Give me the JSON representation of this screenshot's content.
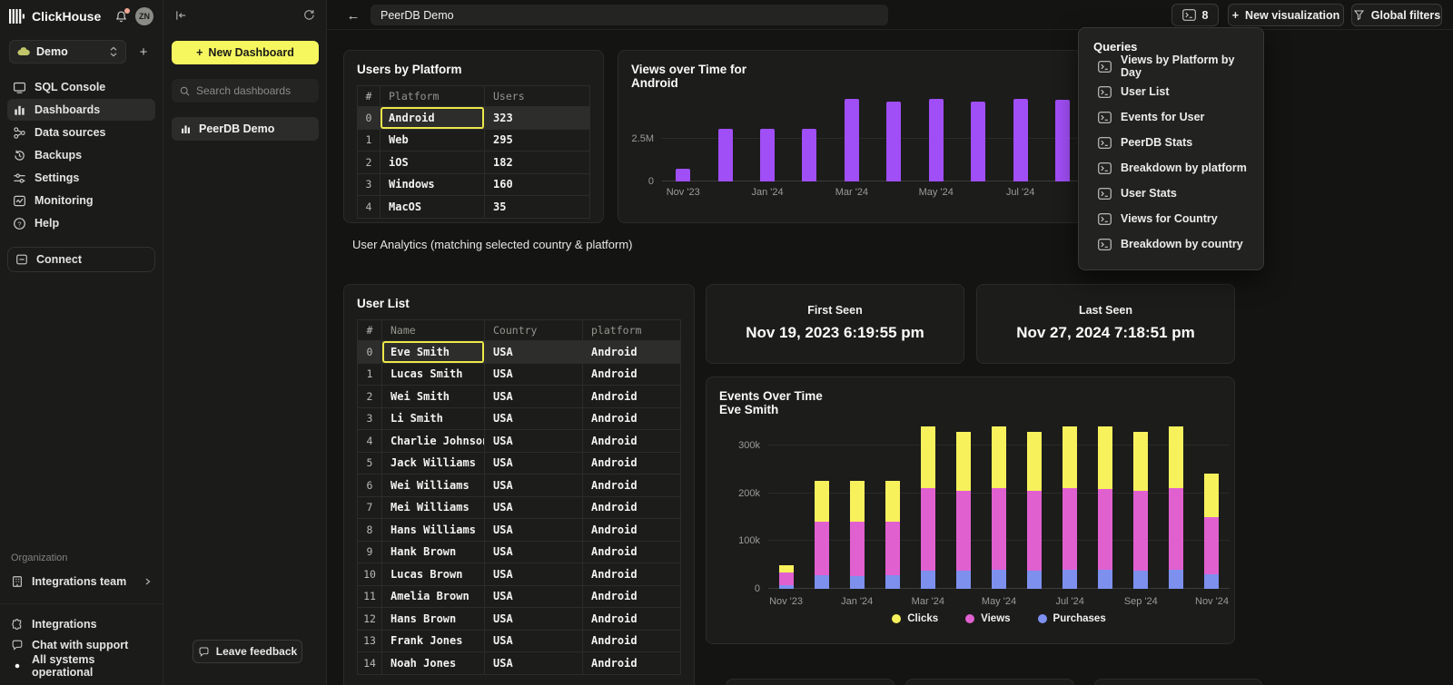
{
  "sidebar": {
    "brand": "ClickHouse",
    "avatar": "ZN",
    "workspace": "Demo",
    "nav": [
      {
        "label": "SQL Console",
        "icon": "console-icon",
        "active": false
      },
      {
        "label": "Dashboards",
        "icon": "dashboards-icon",
        "active": true
      },
      {
        "label": "Data sources",
        "icon": "data-sources-icon",
        "active": false
      },
      {
        "label": "Backups",
        "icon": "backups-icon",
        "active": false
      },
      {
        "label": "Settings",
        "icon": "settings-icon",
        "active": false
      },
      {
        "label": "Monitoring",
        "icon": "monitoring-icon",
        "active": false
      },
      {
        "label": "Help",
        "icon": "help-icon",
        "active": false
      }
    ],
    "connect_label": "Connect",
    "organization_label": "Organization",
    "team_label": "Integrations team",
    "footer": [
      {
        "label": "Integrations",
        "icon": "puzzle-icon"
      },
      {
        "label": "Chat with support",
        "icon": "chat-icon"
      },
      {
        "label": "All systems operational",
        "icon": "status-dot-icon"
      }
    ]
  },
  "dashboards_panel": {
    "new_dashboard_label": "New Dashboard",
    "search_placeholder": "Search dashboards",
    "items": [
      {
        "label": "PeerDB Demo"
      }
    ],
    "feedback_label": "Leave feedback"
  },
  "topbar": {
    "title_value": "PeerDB Demo",
    "queries_count": "8",
    "new_visualization_label": "New visualization",
    "global_filters_label": "Global filters"
  },
  "queries_menu": {
    "title": "Queries",
    "items": [
      "Views by Platform by Day",
      "User List",
      "Events for User",
      "PeerDB Stats",
      "Breakdown by platform",
      "User Stats",
      "Views for Country",
      "Breakdown by country"
    ]
  },
  "users_by_platform": {
    "title": "Users by Platform",
    "columns": [
      "#",
      "Platform",
      "Users"
    ],
    "rows": [
      [
        "0",
        "Android",
        "323"
      ],
      [
        "1",
        "Web",
        "295"
      ],
      [
        "2",
        "iOS",
        "182"
      ],
      [
        "3",
        "Windows",
        "160"
      ],
      [
        "4",
        "MacOS",
        "35"
      ]
    ],
    "selected": {
      "row": 0,
      "col": 1
    }
  },
  "section_label": "User Analytics (matching selected country & platform)",
  "user_list": {
    "title": "User List",
    "columns": [
      "#",
      "Name",
      "Country",
      "platform"
    ],
    "rows": [
      [
        "0",
        "Eve Smith",
        "USA",
        "Android"
      ],
      [
        "1",
        "Lucas Smith",
        "USA",
        "Android"
      ],
      [
        "2",
        "Wei Smith",
        "USA",
        "Android"
      ],
      [
        "3",
        "Li Smith",
        "USA",
        "Android"
      ],
      [
        "4",
        "Charlie Johnson",
        "USA",
        "Android"
      ],
      [
        "5",
        "Jack Williams",
        "USA",
        "Android"
      ],
      [
        "6",
        "Wei Williams",
        "USA",
        "Android"
      ],
      [
        "7",
        "Mei Williams",
        "USA",
        "Android"
      ],
      [
        "8",
        "Hans Williams",
        "USA",
        "Android"
      ],
      [
        "9",
        "Hank Brown",
        "USA",
        "Android"
      ],
      [
        "10",
        "Lucas Brown",
        "USA",
        "Android"
      ],
      [
        "11",
        "Amelia Brown",
        "USA",
        "Android"
      ],
      [
        "12",
        "Hans Brown",
        "USA",
        "Android"
      ],
      [
        "13",
        "Frank Jones",
        "USA",
        "Android"
      ],
      [
        "14",
        "Noah Jones",
        "USA",
        "Android"
      ]
    ],
    "selected": {
      "row": 0,
      "col": 1
    }
  },
  "first_seen": {
    "label": "First Seen",
    "value": "Nov 19, 2023 6:19:55 pm"
  },
  "last_seen": {
    "label": "Last Seen",
    "value": "Nov 27, 2024 7:18:51 pm"
  },
  "chart_data": [
    {
      "id": "views_over_time",
      "type": "bar",
      "title": "Views over Time for",
      "subtitle": "Android",
      "bar_color": "#a04ef6",
      "unit": "M views",
      "x": [
        "Nov '23",
        "Dec '23",
        "Jan '24",
        "Feb '24",
        "Mar '24",
        "Apr '24",
        "May '24",
        "Jun '24",
        "Jul '24",
        "Aug '24"
      ],
      "values": [
        0.75,
        3.1,
        3.1,
        3.1,
        4.85,
        4.7,
        4.85,
        4.7,
        4.85,
        4.8
      ],
      "slots": 14,
      "ylim": [
        0,
        5.32
      ],
      "yticks": [
        {
          "v": 2.5,
          "label": "2.5M"
        },
        {
          "v": 0,
          "label": "0"
        }
      ],
      "tick_labels": [
        "Nov '23",
        "Jan '24",
        "Mar '24",
        "May '24",
        "Jul '24"
      ],
      "note_occluded_right": "right portion of chart covered by Queries menu"
    },
    {
      "id": "events_over_time",
      "type": "stacked_bar",
      "title": "Events Over Time",
      "subtitle": "Eve Smith",
      "unit": "k events",
      "x": [
        "Nov '23",
        "Dec '23",
        "Jan '24",
        "Feb '24",
        "Mar '24",
        "Apr '24",
        "May '24",
        "Jun '24",
        "Jul '24",
        "Aug '24",
        "Sep '24",
        "Oct '24",
        "Nov '24"
      ],
      "series": [
        {
          "name": "Clicks",
          "color": "#f7f15c",
          "values": [
            16,
            85,
            85,
            85,
            130,
            124,
            130,
            124,
            130,
            130,
            124,
            130,
            90
          ]
        },
        {
          "name": "Views",
          "color": "#e160d0",
          "values": [
            26,
            112,
            114,
            112,
            172,
            166,
            170,
            166,
            170,
            170,
            166,
            170,
            120
          ]
        },
        {
          "name": "Purchases",
          "color": "#7d90ee",
          "values": [
            8,
            28,
            26,
            28,
            38,
            38,
            40,
            38,
            40,
            39,
            38,
            40,
            30
          ]
        }
      ],
      "slots": 13,
      "ylim": [
        0,
        345
      ],
      "yticks": [
        {
          "v": 300,
          "label": "300k"
        },
        {
          "v": 200,
          "label": "200k"
        },
        {
          "v": 100,
          "label": "100k"
        },
        {
          "v": 0,
          "label": "0"
        }
      ],
      "tick_labels": [
        "Nov '23",
        "Jan '24",
        "Mar '24",
        "May '24",
        "Jul '24",
        "Sep '24",
        "Nov '24"
      ],
      "legend_position": "bottom"
    }
  ]
}
